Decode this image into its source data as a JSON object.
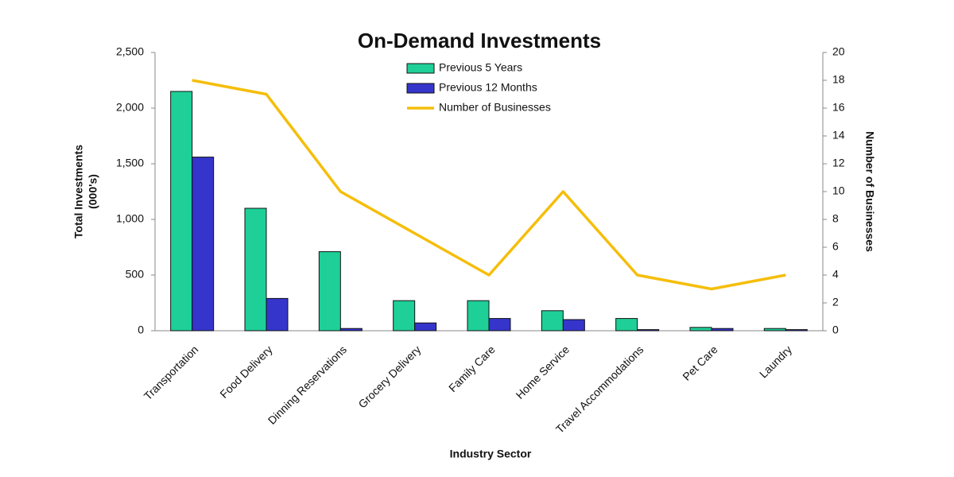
{
  "chart_data": {
    "type": "bar",
    "title": "On-Demand Investments",
    "x_label": "Industry Sector",
    "y_label": [
      "Total Investments",
      "(000's)"
    ],
    "y2_label": "Number of Businesses",
    "categories": [
      "Transportation",
      "Food Delivery",
      "Dinning Reservations",
      "Grocery Delivery",
      "Family Care",
      "Home Service",
      "Travel Accommodations",
      "Pet Care",
      "Laundry"
    ],
    "series": [
      {
        "name": "Previous 5 Years",
        "type": "bar",
        "color": "#1fcf98",
        "values": [
          2150,
          1100,
          710,
          270,
          270,
          180,
          110,
          30,
          20
        ]
      },
      {
        "name": "Previous 12 Months",
        "type": "bar",
        "color": "#3535cc",
        "values": [
          1560,
          290,
          20,
          70,
          110,
          100,
          10,
          20,
          10
        ]
      },
      {
        "name": "Number of Businesses",
        "type": "line",
        "axis": "y2",
        "color": "#f5be0b",
        "values": [
          18,
          17,
          10,
          7,
          4,
          10,
          4,
          3,
          4
        ]
      }
    ],
    "ylim": [
      0,
      2500
    ],
    "yticks": [
      0,
      500,
      {
        "value": 1000,
        "label": "1,000"
      },
      {
        "value": 1500,
        "label": "1,500"
      },
      {
        "value": 2000,
        "label": "2,000"
      },
      {
        "value": 2500,
        "label": "2,500"
      }
    ],
    "y2lim": [
      0,
      20
    ],
    "y2ticks": [
      0,
      2,
      4,
      6,
      8,
      10,
      12,
      14,
      16,
      18,
      20
    ],
    "grid": false
  }
}
